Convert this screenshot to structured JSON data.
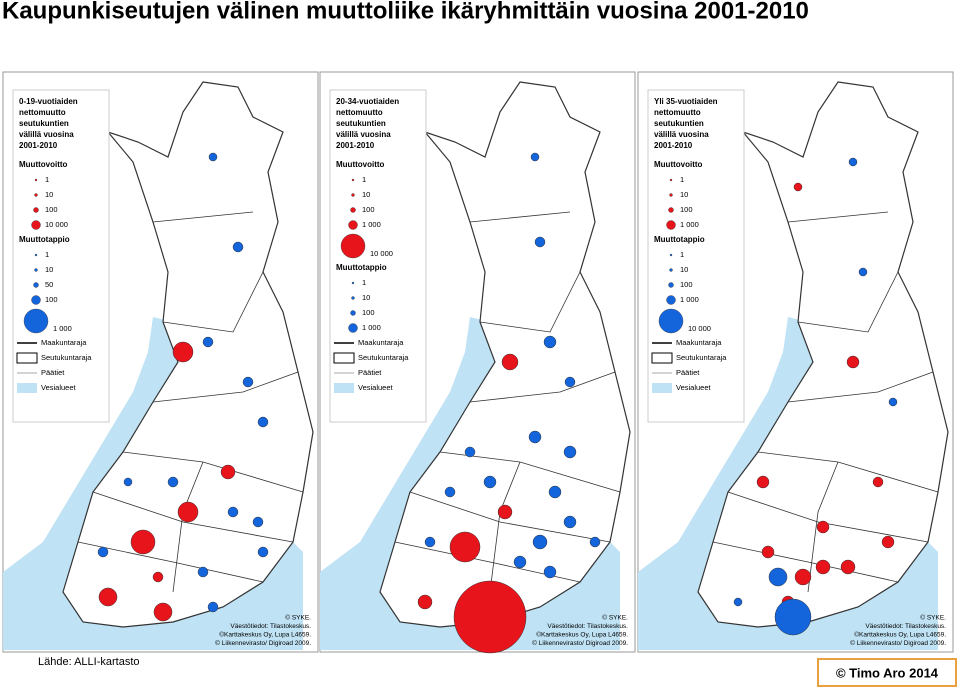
{
  "title": "Kaupunkiseutujen välinen muuttoliike ikäryhmittäin vuosina 2001-2010",
  "maps": [
    {
      "legend_title": [
        "0-19-vuotiaiden",
        "nettomuutto",
        "seutukuntien",
        "välillä vuosina",
        "2001-2010"
      ],
      "gain_heading": "Muuttovoitto",
      "gain_items": [
        "1",
        "10",
        "100",
        "10 000"
      ],
      "loss_heading": "Muuttotappio",
      "loss_items": [
        "1",
        "10",
        "50",
        "100",
        "1 000"
      ],
      "boundaries": [
        "Maakuntaraja",
        "Seutukuntaraja",
        "Päätiet",
        "Vesialueet"
      ],
      "credits": [
        "© SYKE.",
        "Väestötiedot: Tilastokeskus.",
        "©Karttakeskus Oy, Lupa L4659.",
        "© Liikennevirasto/ Digiroad 2009."
      ]
    },
    {
      "legend_title": [
        "20-34-vuotiaiden",
        "nettomuutto",
        "seutukuntien",
        "välillä vuosina",
        "2001-2010"
      ],
      "gain_heading": "Muuttovoitto",
      "gain_items": [
        "1",
        "10",
        "100",
        "1 000",
        "10 000"
      ],
      "loss_heading": "Muuttotappio",
      "loss_items": [
        "1",
        "10",
        "100",
        "1 000"
      ],
      "boundaries": [
        "Maakuntaraja",
        "Seutukuntaraja",
        "Päätiet",
        "Vesialueet"
      ],
      "credits": [
        "© SYKE.",
        "Väestötiedot: Tilastokeskus.",
        "©Karttakeskus Oy, Lupa L4659.",
        "© Liikennevirasto/ Digiroad 2009."
      ]
    },
    {
      "legend_title": [
        "Yli 35-vuotiaiden",
        "nettomuutto",
        "seutukuntien",
        "välillä vuosina",
        "2001-2010"
      ],
      "gain_heading": "Muuttovoitto",
      "gain_items": [
        "1",
        "10",
        "100",
        "1 000"
      ],
      "loss_heading": "Muuttotappio",
      "loss_items": [
        "1",
        "10",
        "100",
        "1 000",
        "10 000"
      ],
      "boundaries": [
        "Maakuntaraja",
        "Seutukuntaraja",
        "Päätiet",
        "Vesialueet"
      ],
      "credits": [
        "© SYKE.",
        "Väestötiedot: Tilastokeskus.",
        "©Karttakeskus Oy, Lupa L4659.",
        "© Liikennevirasto/ Digiroad 2009."
      ]
    }
  ],
  "source": "Lähde: ALLI-kartasto",
  "author": "© Timo Aro 2014"
}
